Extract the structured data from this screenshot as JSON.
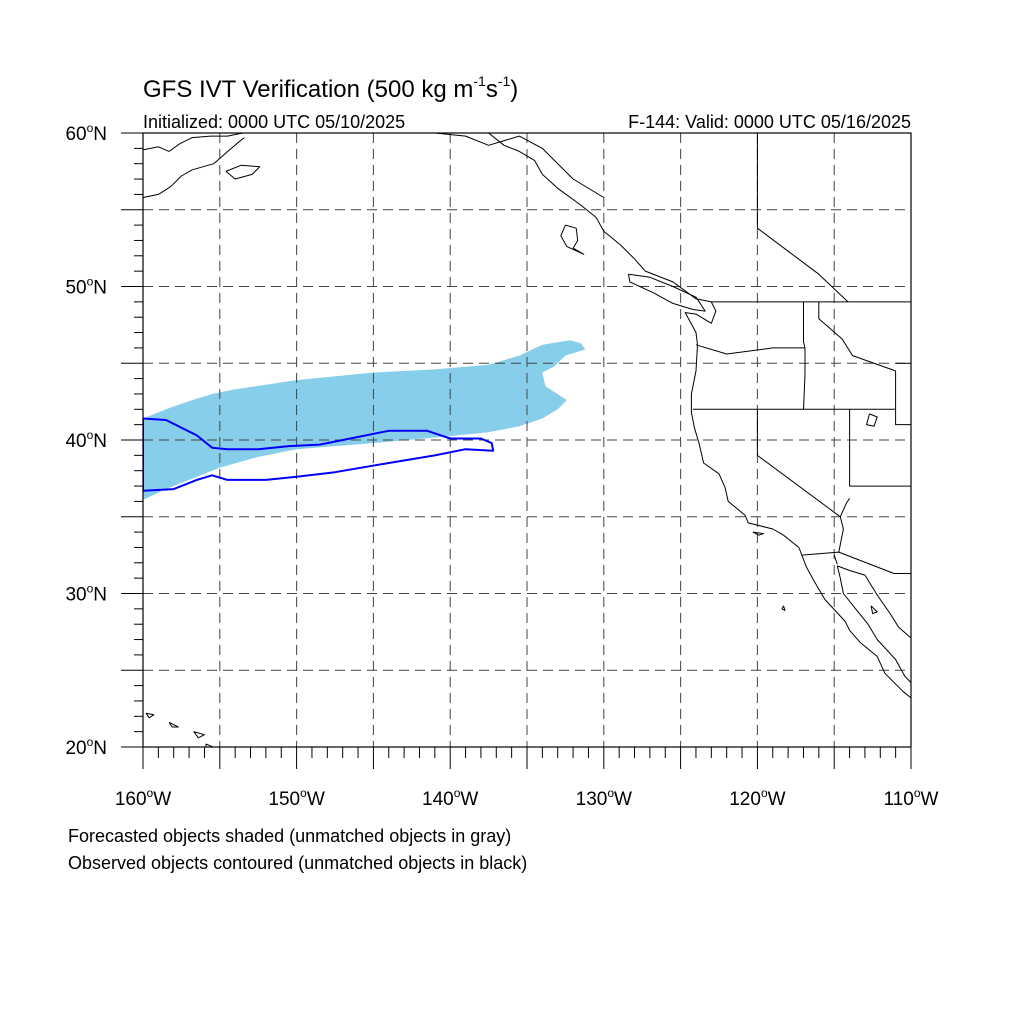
{
  "title": {
    "main": "GFS IVT Verification (500 kg m",
    "exp1": "-1",
    "mid": "s",
    "exp2": "-1",
    "close": ")"
  },
  "subtitle_left": "Initialized: 0000 UTC 05/10/2025",
  "subtitle_right": "F-144: Valid: 0000 UTC 05/16/2025",
  "map": {
    "lon_range": [
      -160,
      -110
    ],
    "lat_range": [
      20,
      60
    ],
    "lon_ticks": [
      {
        "value": -160,
        "label": "160°W"
      },
      {
        "value": -150,
        "label": "150°W"
      },
      {
        "value": -140,
        "label": "140°W"
      },
      {
        "value": -130,
        "label": "130°W"
      },
      {
        "value": -120,
        "label": "120°W"
      },
      {
        "value": -110,
        "label": "110°W"
      }
    ],
    "lat_ticks": [
      {
        "value": 60,
        "label": "60°N"
      },
      {
        "value": 50,
        "label": "50°N"
      },
      {
        "value": 40,
        "label": "40°N"
      },
      {
        "value": 30,
        "label": "30°N"
      },
      {
        "value": 20,
        "label": "20°N"
      }
    ],
    "grid_lons": [
      -155,
      -150,
      -145,
      -140,
      -135,
      -130,
      -125,
      -120,
      -115
    ],
    "grid_lats": [
      25,
      30,
      35,
      40,
      45,
      50,
      55
    ],
    "colors": {
      "forecast_fill": "#87ceeb",
      "observed_contour": "#0000ff",
      "coastline": "#000000"
    },
    "forecast_object": [
      [
        -160,
        41.4
      ],
      [
        -158.5,
        42.0
      ],
      [
        -156.8,
        42.6
      ],
      [
        -155.5,
        43.0
      ],
      [
        -154,
        43.3
      ],
      [
        -150,
        43.9
      ],
      [
        -145,
        44.4
      ],
      [
        -141,
        44.6
      ],
      [
        -137.5,
        44.9
      ],
      [
        -135.5,
        45.5
      ],
      [
        -134,
        46.2
      ],
      [
        -132.2,
        46.5
      ],
      [
        -131.5,
        46.3
      ],
      [
        -131.2,
        45.9
      ],
      [
        -132.5,
        45.5
      ],
      [
        -133.2,
        44.8
      ],
      [
        -134.0,
        44.4
      ],
      [
        -133.8,
        43.5
      ],
      [
        -132.4,
        42.6
      ],
      [
        -133.0,
        42.0
      ],
      [
        -134.0,
        41.4
      ],
      [
        -135.5,
        40.9
      ],
      [
        -137.5,
        40.5
      ],
      [
        -140.5,
        40.2
      ],
      [
        -145,
        39.8
      ],
      [
        -150,
        39.4
      ],
      [
        -152.5,
        38.9
      ],
      [
        -155,
        38.2
      ],
      [
        -157,
        37.4
      ],
      [
        -158.5,
        36.8
      ],
      [
        -160,
        36.1
      ]
    ],
    "observed_object": [
      [
        -160,
        41.4
      ],
      [
        -158.5,
        41.3
      ],
      [
        -157.5,
        40.8
      ],
      [
        -156.5,
        40.3
      ],
      [
        -155.5,
        39.5
      ],
      [
        -154.5,
        39.4
      ],
      [
        -152.5,
        39.4
      ],
      [
        -150.5,
        39.6
      ],
      [
        -148.5,
        39.7
      ],
      [
        -146.5,
        40.1
      ],
      [
        -144,
        40.6
      ],
      [
        -141.5,
        40.6
      ],
      [
        -140,
        40.1
      ],
      [
        -138,
        40.1
      ],
      [
        -137.3,
        39.8
      ],
      [
        -137.2,
        39.3
      ],
      [
        -139.0,
        39.4
      ],
      [
        -141.0,
        39.0
      ],
      [
        -144.0,
        38.5
      ],
      [
        -147.5,
        37.9
      ],
      [
        -150.0,
        37.6
      ],
      [
        -152.0,
        37.4
      ],
      [
        -154.5,
        37.4
      ],
      [
        -155.5,
        37.7
      ],
      [
        -156.5,
        37.4
      ],
      [
        -158.0,
        36.8
      ],
      [
        -160,
        36.7
      ]
    ],
    "coastlines": {
      "na_west_coast": [
        [
          -137.5,
          60
        ],
        [
          -136.5,
          59.2
        ],
        [
          -135.5,
          58.8
        ],
        [
          -134.5,
          58.2
        ],
        [
          -134,
          57.3
        ],
        [
          -133,
          56.4
        ],
        [
          -131.5,
          55.3
        ],
        [
          -130.5,
          54.5
        ],
        [
          -130.0,
          53.6
        ],
        [
          -128.9,
          52.7
        ],
        [
          -128.0,
          51.8
        ],
        [
          -127.3,
          51.0
        ],
        [
          -125.5,
          50.3
        ],
        [
          -124.0,
          49.2
        ],
        [
          -123.0,
          49.0
        ],
        [
          -122.7,
          48.4
        ],
        [
          -123.0,
          47.6
        ],
        [
          -124.0,
          48.2
        ],
        [
          -124.7,
          48.3
        ],
        [
          -124.0,
          47.0
        ],
        [
          -123.9,
          46.2
        ],
        [
          -124.0,
          44.5
        ],
        [
          -124.3,
          43.0
        ],
        [
          -124.3,
          41.8
        ],
        [
          -124.1,
          40.8
        ],
        [
          -123.8,
          39.8
        ],
        [
          -123.5,
          38.5
        ],
        [
          -122.5,
          37.8
        ],
        [
          -122.1,
          36.9
        ],
        [
          -121.9,
          36.0
        ],
        [
          -120.8,
          35.1
        ],
        [
          -120.6,
          34.6
        ],
        [
          -119.0,
          34.2
        ],
        [
          -118.3,
          33.8
        ],
        [
          -117.3,
          33.0
        ],
        [
          -116.8,
          31.7
        ],
        [
          -116.3,
          30.8
        ],
        [
          -115.6,
          29.6
        ],
        [
          -114.3,
          28.2
        ],
        [
          -114.0,
          27.6
        ],
        [
          -113.3,
          26.8
        ],
        [
          -112.2,
          25.9
        ],
        [
          -111.7,
          24.8
        ],
        [
          -110.5,
          23.6
        ],
        [
          -110.0,
          23.2
        ]
      ],
      "gulf_of_california_east": [
        [
          -114.8,
          31.8
        ],
        [
          -114.0,
          31.5
        ],
        [
          -113.0,
          31.2
        ],
        [
          -112.2,
          29.9
        ],
        [
          -111.3,
          28.6
        ],
        [
          -110.8,
          27.8
        ],
        [
          -110.0,
          27.1
        ]
      ],
      "gulf_of_california_west": [
        [
          -114.8,
          31.8
        ],
        [
          -114.6,
          31.0
        ],
        [
          -114.4,
          30.0
        ],
        [
          -113.6,
          29.0
        ],
        [
          -112.8,
          28.0
        ],
        [
          -112.2,
          27.0
        ],
        [
          -111.0,
          25.7
        ],
        [
          -110.4,
          24.6
        ],
        [
          -110.0,
          24.2
        ]
      ],
      "alaska_peninsula": [
        [
          -160,
          58.9
        ],
        [
          -159.0,
          59.1
        ],
        [
          -158.3,
          58.8
        ],
        [
          -157.6,
          59.3
        ],
        [
          -156.8,
          59.7
        ],
        [
          -155.6,
          59.8
        ],
        [
          -154.5,
          59.8
        ],
        [
          -153.5,
          60.0
        ]
      ],
      "alaska_peninsula_south": [
        [
          -160,
          55.8
        ],
        [
          -159.0,
          56.0
        ],
        [
          -158.2,
          56.5
        ],
        [
          -157.5,
          57.2
        ],
        [
          -156.8,
          57.6
        ],
        [
          -155.4,
          58.0
        ],
        [
          -154.6,
          58.7
        ],
        [
          -153.9,
          59.3
        ],
        [
          -153.4,
          59.7
        ]
      ],
      "kodiak": [
        [
          -154.6,
          57.5
        ],
        [
          -153.6,
          57.9
        ],
        [
          -152.4,
          57.8
        ],
        [
          -152.9,
          57.3
        ],
        [
          -154.0,
          57.0
        ],
        [
          -154.6,
          57.5
        ]
      ],
      "haida_gwaii": [
        [
          -132.5,
          54.0
        ],
        [
          -131.8,
          53.8
        ],
        [
          -131.7,
          53.0
        ],
        [
          -132.0,
          52.5
        ],
        [
          -131.3,
          52.1
        ],
        [
          -132.4,
          52.6
        ],
        [
          -132.8,
          53.3
        ],
        [
          -132.5,
          54.0
        ]
      ],
      "vancouver_island": [
        [
          -128.4,
          50.8
        ],
        [
          -127.0,
          50.6
        ],
        [
          -125.5,
          50.0
        ],
        [
          -124.0,
          49.3
        ],
        [
          -123.4,
          48.4
        ],
        [
          -124.2,
          48.5
        ],
        [
          -125.5,
          48.9
        ],
        [
          -126.8,
          49.6
        ],
        [
          -128.3,
          50.3
        ],
        [
          -128.4,
          50.8
        ]
      ],
      "hawaii_big": [
        [
          -155.9,
          20.2
        ],
        [
          -155.0,
          19.8
        ],
        [
          -155.3,
          19.6
        ],
        [
          -155.9,
          19.5
        ],
        [
          -155.9,
          20.2
        ]
      ],
      "hawaii_maui": [
        [
          -156.7,
          21.0
        ],
        [
          -156.0,
          20.8
        ],
        [
          -156.4,
          20.6
        ],
        [
          -156.7,
          21.0
        ]
      ],
      "hawaii_oahu": [
        [
          -158.3,
          21.6
        ],
        [
          -157.7,
          21.3
        ],
        [
          -158.1,
          21.3
        ],
        [
          -158.3,
          21.6
        ]
      ],
      "hawaii_kauai": [
        [
          -159.8,
          22.2
        ],
        [
          -159.3,
          22.1
        ],
        [
          -159.6,
          21.9
        ],
        [
          -159.8,
          22.2
        ]
      ],
      "great_salt_lake": [
        [
          -112.7,
          41.7
        ],
        [
          -112.2,
          41.5
        ],
        [
          -112.4,
          40.9
        ],
        [
          -112.9,
          41.0
        ],
        [
          -112.7,
          41.7
        ]
      ],
      "channel_islands": [
        [
          -120.3,
          34.0
        ],
        [
          -119.6,
          33.9
        ],
        [
          -119.9,
          33.8
        ],
        [
          -120.3,
          34.0
        ]
      ],
      "guadalupe_island": [
        [
          -118.3,
          29.2
        ],
        [
          -118.2,
          28.9
        ],
        [
          -118.4,
          29.0
        ],
        [
          -118.3,
          29.2
        ]
      ],
      "tiburon": [
        [
          -112.6,
          29.2
        ],
        [
          -112.2,
          28.8
        ],
        [
          -112.5,
          28.7
        ],
        [
          -112.6,
          29.2
        ]
      ]
    },
    "borders": {
      "us_canada": [
        [
          -123.0,
          49.0
        ],
        [
          -110,
          49.0
        ]
      ],
      "us_mexico_west": [
        [
          -117.1,
          32.5
        ],
        [
          -114.7,
          32.7
        ],
        [
          -111.1,
          31.3
        ],
        [
          -110,
          31.3
        ]
      ],
      "alaska_yukon": [
        [
          -141,
          60
        ],
        [
          -139,
          59.8
        ],
        [
          -137.5,
          59.2
        ],
        [
          -135.5,
          59.8
        ],
        [
          -134.0,
          59.0
        ],
        [
          -132.0,
          57.0
        ],
        [
          -130.0,
          55.8
        ]
      ],
      "wa_or": [
        [
          -124.0,
          46.2
        ],
        [
          -122.0,
          45.6
        ],
        [
          -119.0,
          46.0
        ],
        [
          -116.9,
          46.0
        ]
      ],
      "or_ca_nv": [
        [
          -124.2,
          42.0
        ],
        [
          -111.0,
          42.0
        ]
      ],
      "or_id": [
        [
          -116.9,
          46.0
        ],
        [
          -116.9,
          44.3
        ],
        [
          -117.0,
          42.0
        ]
      ],
      "wa_id": [
        [
          -117.0,
          49.0
        ],
        [
          -117.0,
          46.4
        ],
        [
          -116.9,
          46.0
        ]
      ],
      "id_mt": [
        [
          -116.0,
          49.0
        ],
        [
          -116.0,
          47.9
        ],
        [
          -114.5,
          46.6
        ],
        [
          -113.8,
          45.5
        ],
        [
          -111.0,
          44.5
        ]
      ],
      "mt_wy": [
        [
          -111.0,
          45.0
        ],
        [
          -110,
          45.0
        ]
      ],
      "ut_wy": [
        [
          -111.0,
          44.5
        ],
        [
          -111.0,
          41.0
        ],
        [
          -110,
          41.0
        ]
      ],
      "nv_ut_az": [
        [
          -114.0,
          42.0
        ],
        [
          -114.0,
          37.0
        ],
        [
          -110,
          37.0
        ]
      ],
      "ca_nv": [
        [
          -120.0,
          42.0
        ],
        [
          -120.0,
          39.0
        ],
        [
          -114.6,
          35.0
        ]
      ],
      "ca_az": [
        [
          -114.6,
          35.0
        ],
        [
          -114.4,
          34.2
        ],
        [
          -114.7,
          32.7
        ]
      ],
      "az_ut_line": [
        [
          -114.0,
          36.2
        ],
        [
          -114.2,
          35.9
        ],
        [
          -114.6,
          35.0
        ]
      ],
      "canada_bc_ab": [
        [
          -120.0,
          60
        ],
        [
          -120.0,
          53.8
        ],
        [
          -118.0,
          52.3
        ],
        [
          -116.0,
          50.8
        ],
        [
          -114.1,
          49.0
        ]
      ],
      "sonora": [
        [
          -115.0,
          32.5
        ],
        [
          -114.8,
          31.9
        ]
      ]
    }
  }
}
